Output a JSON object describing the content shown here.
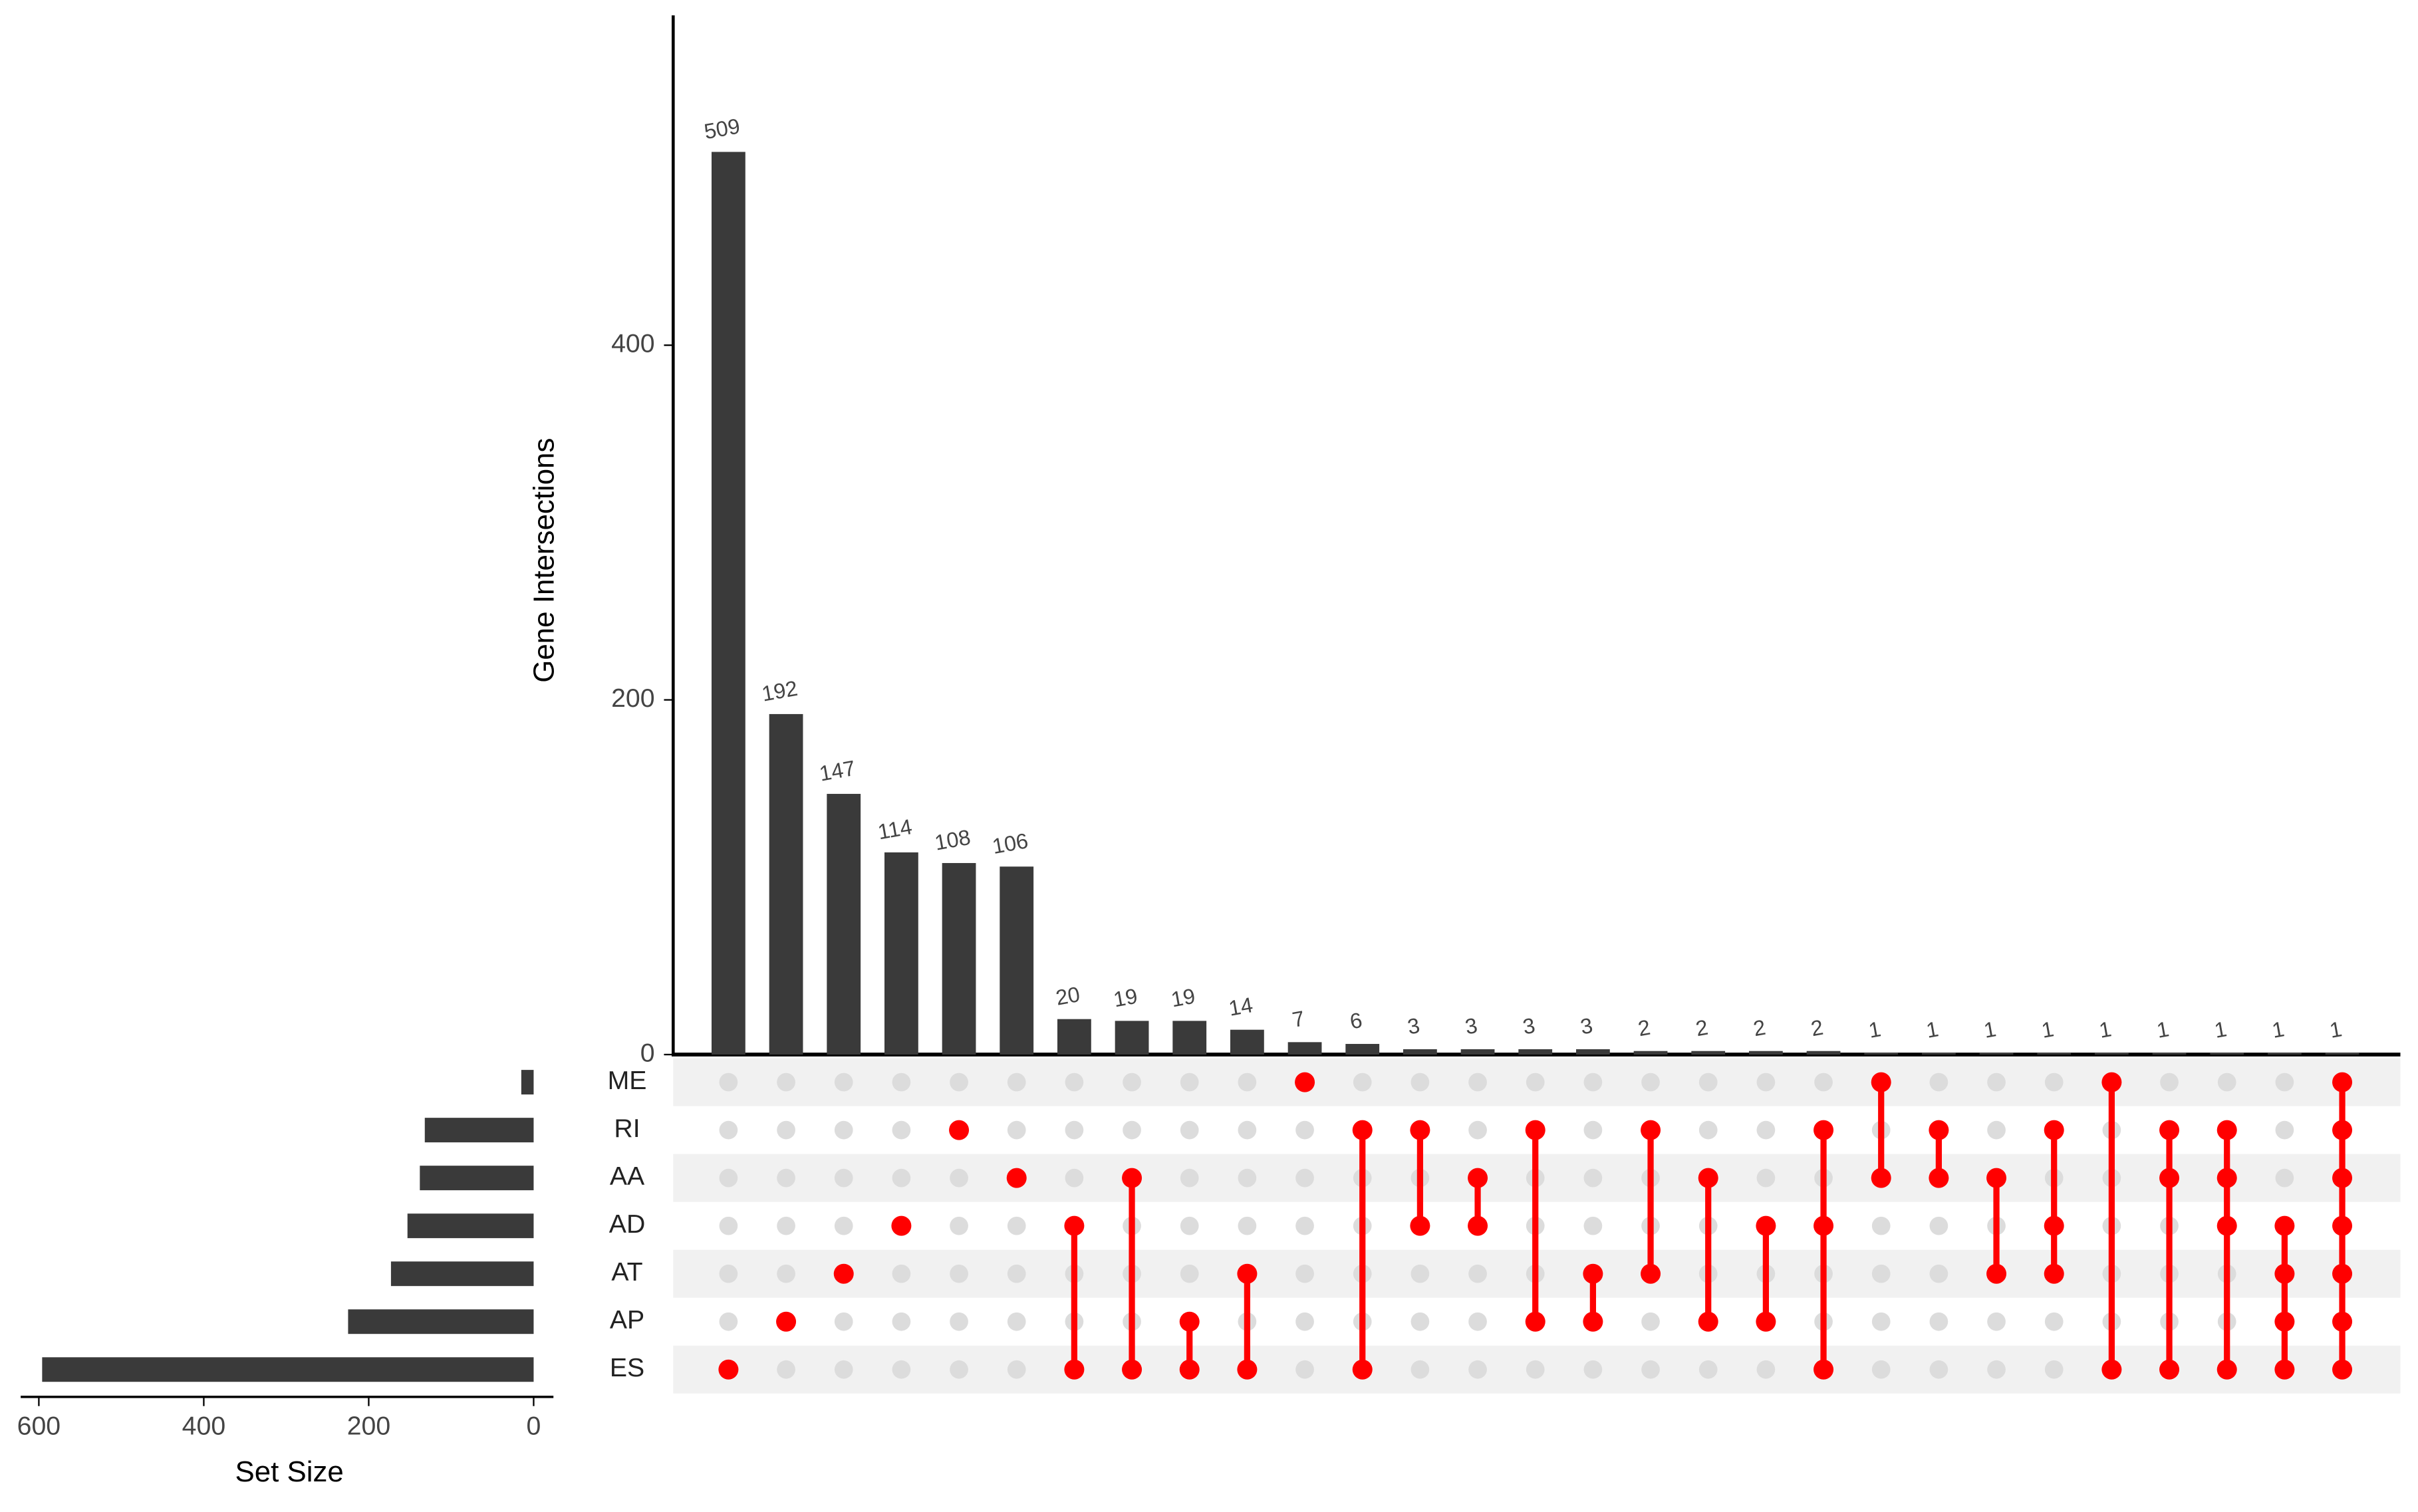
{
  "chart_data": {
    "type": "upset",
    "y_label": "Gene Intersections",
    "x_label": "Set Size",
    "bar_color": "#3a3a3a",
    "dot_color": "#ff0000",
    "sets": {
      "names": [
        "ME",
        "RI",
        "AA",
        "AD",
        "AT",
        "AP",
        "ES"
      ],
      "sizes": [
        15,
        132,
        138,
        153,
        173,
        225,
        596
      ]
    },
    "intersections": {
      "values": [
        509,
        192,
        147,
        114,
        108,
        106,
        20,
        19,
        19,
        14,
        7,
        6,
        3,
        3,
        3,
        3,
        2,
        2,
        2,
        2,
        1,
        1,
        1,
        1,
        1,
        1,
        1,
        1,
        1
      ],
      "members": [
        [
          "ES"
        ],
        [
          "AP"
        ],
        [
          "AT"
        ],
        [
          "AD"
        ],
        [
          "RI"
        ],
        [
          "AA"
        ],
        [
          "AD",
          "ES"
        ],
        [
          "AA",
          "ES"
        ],
        [
          "AP",
          "ES"
        ],
        [
          "AT",
          "ES"
        ],
        [
          "ME"
        ],
        [
          "RI",
          "ES"
        ],
        [
          "RI",
          "AD"
        ],
        [
          "AA",
          "AD"
        ],
        [
          "RI",
          "AP"
        ],
        [
          "AT",
          "AP"
        ],
        [
          "RI",
          "AT"
        ],
        [
          "AA",
          "AP"
        ],
        [
          "AD",
          "AP"
        ],
        [
          "RI",
          "AD",
          "ES"
        ],
        [
          "ME",
          "AA"
        ],
        [
          "RI",
          "AA"
        ],
        [
          "AA",
          "AT"
        ],
        [
          "RI",
          "AD",
          "AT"
        ],
        [
          "ME",
          "ES"
        ],
        [
          "RI",
          "AA",
          "ES"
        ],
        [
          "RI",
          "AA",
          "AD",
          "ES"
        ],
        [
          "AD",
          "AT",
          "AP",
          "ES"
        ],
        [
          "ME",
          "RI",
          "AA",
          "AD",
          "AT",
          "AP",
          "ES"
        ]
      ]
    },
    "ylim": [
      0,
      586
    ],
    "yticks": [
      0,
      200,
      400
    ],
    "xlim": [
      622,
      -24
    ],
    "xticks": [
      600,
      400,
      200,
      0
    ]
  }
}
